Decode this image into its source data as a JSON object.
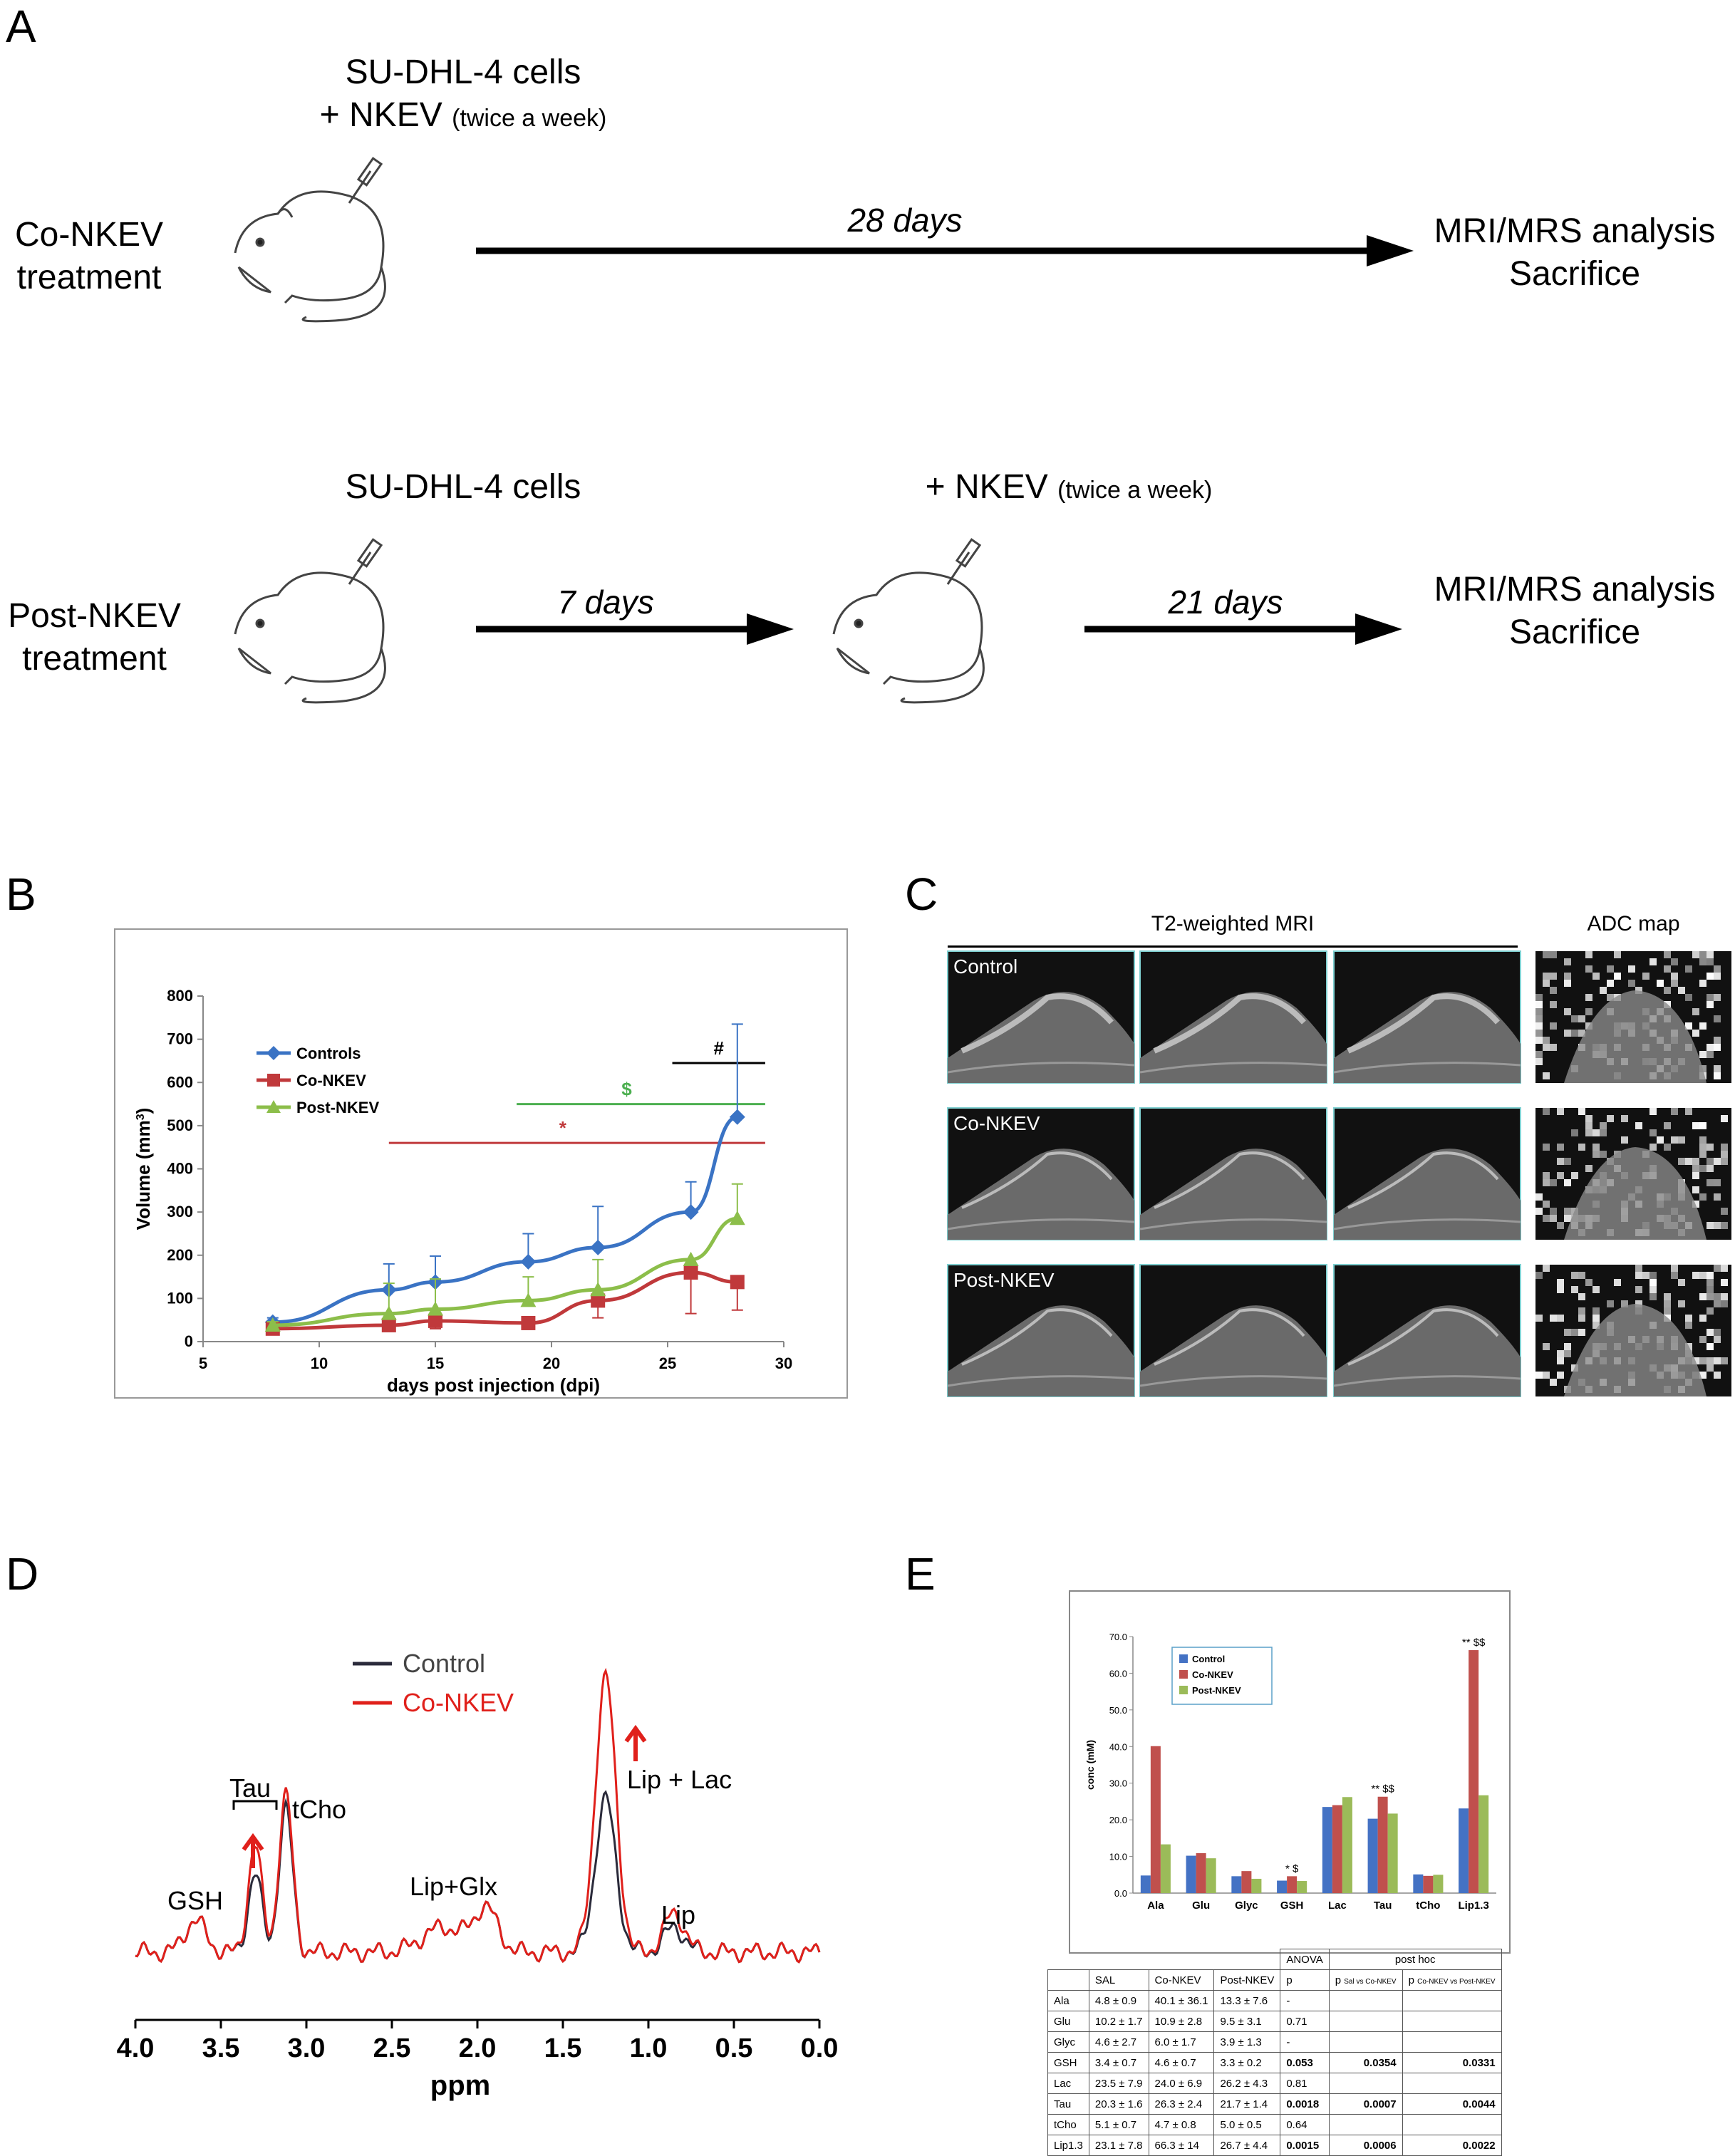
{
  "panels": {
    "a": "A",
    "b": "B",
    "c": "C",
    "d": "D",
    "e": "E"
  },
  "panel_a": {
    "row1": {
      "cells_line1": "SU-DHL-4 cells",
      "cells_line2": "+ NKEV",
      "cells_note": "(twice a week)",
      "label_line1": "Co-NKEV",
      "label_line2": "treatment",
      "duration": "28 days",
      "end_line1": "MRI/MRS analysis",
      "end_line2": "Sacrifice"
    },
    "row2": {
      "cells": "SU-DHL-4 cells",
      "nkev": "+ NKEV",
      "nkev_note": "(twice a week)",
      "label_line1": "Post-NKEV",
      "label_line2": "treatment",
      "duration1": "7 days",
      "duration2": "21 days",
      "end_line1": "MRI/MRS analysis",
      "end_line2": "Sacrifice"
    }
  },
  "panel_c": {
    "t2_title": "T2-weighted MRI",
    "adc_title": "ADC map",
    "rows": [
      "Control",
      "Co-NKEV",
      "Post-NKEV"
    ]
  },
  "chart_data": [
    {
      "type": "line",
      "xlabel": "days post injection (dpi)",
      "ylabel": "Volume (mm3)",
      "xlim": [
        5,
        30
      ],
      "ylim": [
        0,
        800
      ],
      "xticks": [
        5,
        10,
        15,
        20,
        25,
        30
      ],
      "yticks": [
        0,
        100,
        200,
        300,
        400,
        500,
        600,
        700,
        800
      ],
      "legend_position": "upper-left",
      "series": [
        {
          "name": "Controls",
          "color": "#3a73c4",
          "marker": "diamond",
          "x": [
            8,
            13,
            15,
            19,
            22,
            26,
            28
          ],
          "y": [
            45,
            120,
            138,
            185,
            218,
            300,
            520
          ],
          "err": [
            10,
            60,
            60,
            65,
            95,
            70,
            215
          ]
        },
        {
          "name": "Co-NKEV",
          "color": "#c0393b",
          "marker": "square",
          "x": [
            8,
            13,
            15,
            19,
            22,
            26,
            28
          ],
          "y": [
            30,
            38,
            48,
            43,
            95,
            160,
            138
          ],
          "err": [
            8,
            10,
            18,
            8,
            40,
            95,
            65
          ]
        },
        {
          "name": "Post-NKEV",
          "color": "#8cbe4a",
          "marker": "triangle",
          "x": [
            8,
            13,
            15,
            19,
            22,
            26,
            28
          ],
          "y": [
            38,
            65,
            75,
            95,
            120,
            190,
            285
          ],
          "err": [
            8,
            70,
            70,
            55,
            70,
            0,
            80
          ]
        }
      ],
      "significance": [
        {
          "symbol": "#",
          "color": "#000000",
          "x": [
            25.2,
            29.2
          ],
          "y": 645
        },
        {
          "symbol": "$",
          "color": "#4caf50",
          "x": [
            18.5,
            29.2
          ],
          "y": 550
        },
        {
          "symbol": "*",
          "color": "#c0393b",
          "x": [
            13,
            29.2
          ],
          "y": 460
        }
      ]
    },
    {
      "type": "line",
      "xlabel": "ppm",
      "xlim": [
        4.0,
        0.0
      ],
      "xticks": [
        "4.0",
        "3.5",
        "3.0",
        "2.5",
        "2.0",
        "1.5",
        "1.0",
        "0.5",
        "0.0"
      ],
      "series": [
        {
          "name": "Control",
          "color": "#2b2b3b"
        },
        {
          "name": "Co-NKEV",
          "color": "#e0201b"
        }
      ],
      "annotations": [
        "Tau",
        "tCho",
        "GSH",
        "Lip+Glx",
        "Lip + Lac",
        "Lip"
      ]
    },
    {
      "type": "bar",
      "ylabel": "conc (mM)",
      "ylim": [
        0,
        70
      ],
      "yticks": [
        "0.0",
        "10.0",
        "20.0",
        "30.0",
        "40.0",
        "50.0",
        "60.0",
        "70.0"
      ],
      "categories": [
        "Ala",
        "Glu",
        "Glyc",
        "GSH",
        "Lac",
        "Tau",
        "tCho",
        "Lip1.3"
      ],
      "legend_position": "upper-left",
      "series": [
        {
          "name": "Control",
          "color": "#4472c4",
          "values": [
            4.8,
            10.2,
            4.6,
            3.4,
            23.5,
            20.3,
            5.1,
            23.1
          ]
        },
        {
          "name": "Co-NKEV",
          "color": "#c0504d",
          "values": [
            40.1,
            10.9,
            6.0,
            4.6,
            24.0,
            26.3,
            4.7,
            66.3
          ]
        },
        {
          "name": "Post-NKEV",
          "color": "#9bbb59",
          "values": [
            13.3,
            9.5,
            3.9,
            3.3,
            26.2,
            21.7,
            5.0,
            26.7
          ]
        }
      ],
      "marks": [
        {
          "category": "GSH",
          "text": "* $"
        },
        {
          "category": "Tau",
          "text": "** $$"
        },
        {
          "category": "Lip1.3",
          "text": "** $$"
        }
      ]
    }
  ],
  "table": {
    "group_headers": {
      "anova": "ANOVA",
      "posthoc": "post hoc"
    },
    "headers": [
      "",
      "SAL",
      "Co-NKEV",
      "Post-NKEV",
      "p",
      "p",
      "p"
    ],
    "header_subs": [
      "",
      "",
      "",
      "",
      "",
      "Sal vs Co-NKEV",
      "Co-NKEV vs Post-NKEV"
    ],
    "rows": [
      [
        "Ala",
        "4.8 ± 0.9",
        "40.1 ± 36.1",
        "13.3 ± 7.6",
        "-",
        "",
        ""
      ],
      [
        "Glu",
        "10.2 ± 1.7",
        "10.9 ± 2.8",
        "9.5 ± 3.1",
        "0.71",
        "",
        ""
      ],
      [
        "Glyc",
        "4.6 ± 2.7",
        "6.0 ± 1.7",
        "3.9 ± 1.3",
        "-",
        "",
        ""
      ],
      [
        "GSH",
        "3.4 ± 0.7",
        "4.6 ± 0.7",
        "3.3 ± 0.2",
        "0.053",
        "0.0354",
        "0.0331"
      ],
      [
        "Lac",
        "23.5 ± 7.9",
        "24.0 ± 6.9",
        "26.2 ± 4.3",
        "0.81",
        "",
        ""
      ],
      [
        "Tau",
        "20.3 ± 1.6",
        "26.3 ± 2.4",
        "21.7 ± 1.4",
        "0.0018",
        "0.0007",
        "0.0044"
      ],
      [
        "tCho",
        "5.1 ± 0.7",
        "4.7 ± 0.8",
        "5.0 ± 0.5",
        "0.64",
        "",
        ""
      ],
      [
        "Lip1.3",
        "23.1 ± 7.8",
        "66.3 ± 14",
        "26.7 ± 4.4",
        "0.0015",
        "0.0006",
        "0.0022"
      ]
    ]
  }
}
